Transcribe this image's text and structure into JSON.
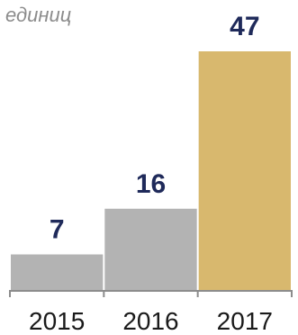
{
  "chart_data": {
    "type": "bar",
    "unit_label": "единиц",
    "categories": [
      "2015",
      "2016",
      "2017"
    ],
    "values": [
      7,
      16,
      47
    ],
    "ylim": [
      0,
      47
    ],
    "grid": false,
    "colors": [
      "#b3b3b3",
      "#b3b3b3",
      "#d8b86e"
    ],
    "value_label_color": "#1f2a5a",
    "axis_color": "#8c8c8c"
  }
}
